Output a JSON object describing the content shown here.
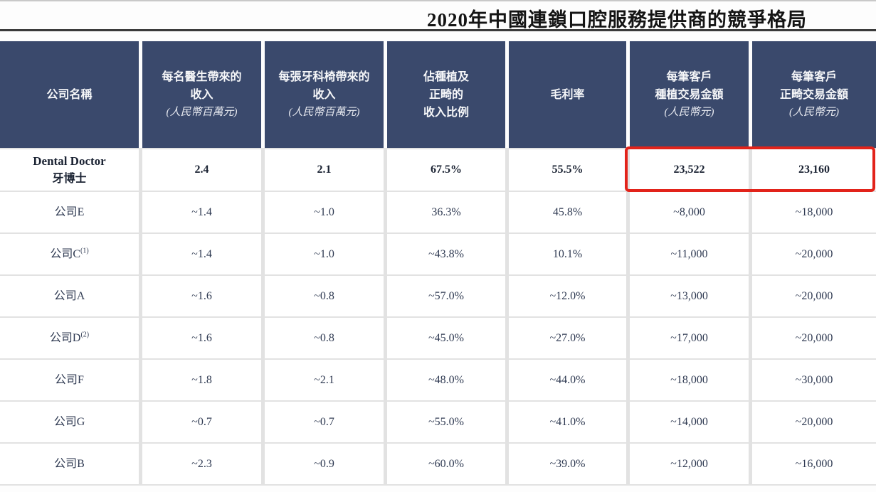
{
  "title": "2020年中國連鎖口腔服務提供商的競爭格局",
  "colors": {
    "header_bg": "#3a496c",
    "header_text": "#f6f7f9",
    "body_text": "#2f3a52",
    "grid_line": "#e2e2e2",
    "highlight_border": "#e2231a",
    "title_rule": "#3a3a3a"
  },
  "table": {
    "columns": [
      {
        "lines": [
          "公司名稱"
        ],
        "sub": ""
      },
      {
        "lines": [
          "每名醫生帶來的",
          "收入"
        ],
        "sub": "(人民幣百萬元)"
      },
      {
        "lines": [
          "每張牙科椅帶來的",
          "收入"
        ],
        "sub": "(人民幣百萬元)"
      },
      {
        "lines": [
          "佔種植及",
          "正畸的",
          "收入比例"
        ],
        "sub": ""
      },
      {
        "lines": [
          "毛利率"
        ],
        "sub": ""
      },
      {
        "lines": [
          "每筆客戶",
          "種植交易金額"
        ],
        "sub": "(人民幣元)"
      },
      {
        "lines": [
          "每筆客戶",
          "正畸交易金額"
        ],
        "sub": "(人民幣元)"
      }
    ],
    "rows": [
      {
        "name_en": "Dental Doctor",
        "name": "牙博士",
        "sup": "",
        "bold": true,
        "values": [
          "2.4",
          "2.1",
          "67.5%",
          "55.5%",
          "23,522",
          "23,160"
        ]
      },
      {
        "name_en": "",
        "name": "公司E",
        "sup": "",
        "bold": false,
        "values": [
          "~1.4",
          "~1.0",
          "36.3%",
          "45.8%",
          "~8,000",
          "~18,000"
        ]
      },
      {
        "name_en": "",
        "name": "公司C",
        "sup": "(1)",
        "bold": false,
        "values": [
          "~1.4",
          "~1.0",
          "~43.8%",
          "10.1%",
          "~11,000",
          "~20,000"
        ]
      },
      {
        "name_en": "",
        "name": "公司A",
        "sup": "",
        "bold": false,
        "values": [
          "~1.6",
          "~0.8",
          "~57.0%",
          "~12.0%",
          "~13,000",
          "~20,000"
        ]
      },
      {
        "name_en": "",
        "name": "公司D",
        "sup": "(2)",
        "bold": false,
        "values": [
          "~1.6",
          "~0.8",
          "~45.0%",
          "~27.0%",
          "~17,000",
          "~20,000"
        ]
      },
      {
        "name_en": "",
        "name": "公司F",
        "sup": "",
        "bold": false,
        "values": [
          "~1.8",
          "~2.1",
          "~48.0%",
          "~44.0%",
          "~18,000",
          "~30,000"
        ]
      },
      {
        "name_en": "",
        "name": "公司G",
        "sup": "",
        "bold": false,
        "values": [
          "~0.7",
          "~0.7",
          "~55.0%",
          "~41.0%",
          "~14,000",
          "~20,000"
        ]
      },
      {
        "name_en": "",
        "name": "公司B",
        "sup": "",
        "bold": false,
        "values": [
          "~2.3",
          "~0.9",
          "~60.0%",
          "~39.0%",
          "~12,000",
          "~16,000"
        ]
      }
    ],
    "highlight": {
      "row": 0,
      "columns": [
        5,
        6
      ]
    }
  }
}
